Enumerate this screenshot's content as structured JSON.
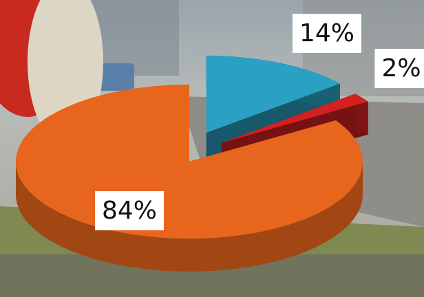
{
  "chart_data": {
    "type": "pie",
    "values": [
      14,
      2,
      84
    ],
    "value_labels": [
      "14%",
      "2%",
      "84%"
    ],
    "colors": [
      "#2aa0c2",
      "#d42020",
      "#e8651d"
    ]
  }
}
